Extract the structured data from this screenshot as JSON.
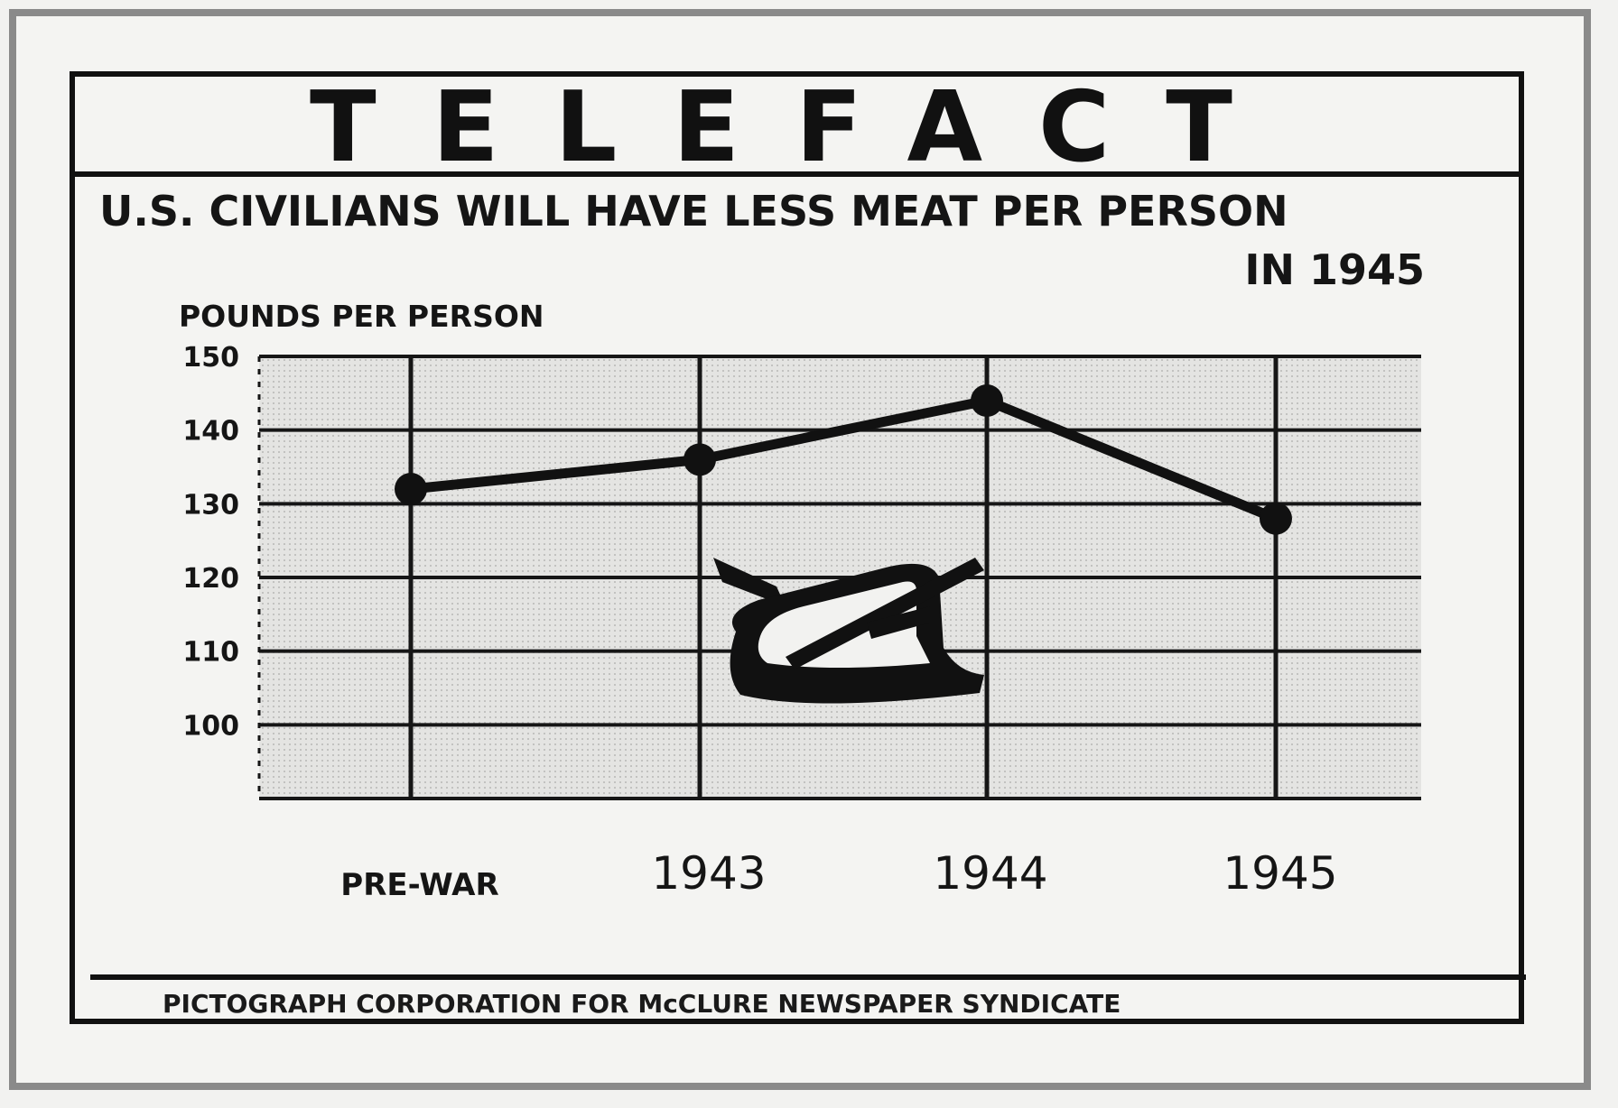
{
  "header": {
    "banner": "TELEFACT"
  },
  "chart_data": {
    "type": "line",
    "title": "U.S. CIVILIANS WILL HAVE LESS MEAT PER PERSON",
    "title_line2": "IN 1945",
    "ylabel": "POUNDS PER PERSON",
    "xlabel": "",
    "categories": [
      "PRE-WAR",
      "1943",
      "1944",
      "1945"
    ],
    "values": [
      132,
      136,
      144,
      128
    ],
    "ylim": [
      90,
      150
    ],
    "yticks": [
      100,
      110,
      120,
      130,
      140,
      150
    ],
    "grid": true,
    "legend": "none",
    "line_color": "#111111",
    "background": "#e6e6e4",
    "icon": "meat-cleaver-icon"
  },
  "footer": {
    "credit": "PICTOGRAPH CORPORATION FOR McCLURE NEWSPAPER SYNDICATE"
  }
}
